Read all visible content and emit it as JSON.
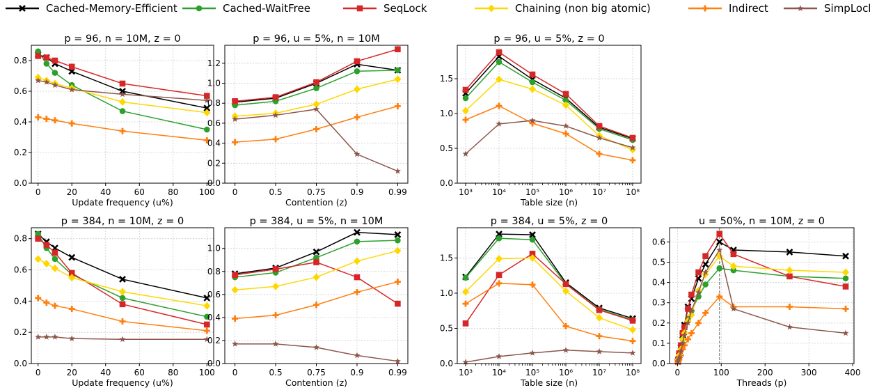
{
  "legend": {
    "items": [
      {
        "label": "Cached-Memory-Efficient",
        "color": "#000000",
        "marker": "x-marker"
      },
      {
        "label": "Cached-WaitFree",
        "color": "#2ca02c",
        "marker": "circle-marker"
      },
      {
        "label": "SeqLock",
        "color": "#d62728",
        "marker": "square-marker"
      },
      {
        "label": "Chaining (non big atomic)",
        "color": "#ffd700",
        "marker": "diamond-marker"
      },
      {
        "label": "Indirect",
        "color": "#ff7f0e",
        "marker": "plus-marker"
      },
      {
        "label": "SimpLock",
        "color": "#8c564b",
        "marker": "star-marker"
      }
    ]
  },
  "chart_data": [
    {
      "type": "line",
      "title": "p = 96, n = 10M, z = 0",
      "xlabel": "Update frequency (u%)",
      "ylabel": "",
      "x": [
        0,
        5,
        10,
        20,
        50,
        100
      ],
      "xlim": [
        -4,
        104
      ],
      "ylim": [
        0,
        0.9
      ],
      "xticks": [
        0,
        20,
        40,
        60,
        80,
        100
      ],
      "xtick_labels": [
        "0",
        "20",
        "40",
        "60",
        "80",
        "100"
      ],
      "yticks": [
        0,
        0.2,
        0.4,
        0.6,
        0.8
      ],
      "ytick_labels": [
        "0.0",
        "0.2",
        "0.4",
        "0.6",
        "0.8"
      ],
      "series": [
        {
          "name": "Cached-Memory-Efficient",
          "values": [
            0.84,
            0.82,
            0.78,
            0.73,
            0.6,
            0.49
          ]
        },
        {
          "name": "Cached-WaitFree",
          "values": [
            0.86,
            0.78,
            0.72,
            0.64,
            0.47,
            0.35
          ]
        },
        {
          "name": "SeqLock",
          "values": [
            0.83,
            0.82,
            0.8,
            0.76,
            0.65,
            0.57
          ]
        },
        {
          "name": "Chaining (non big atomic)",
          "values": [
            0.69,
            0.67,
            0.65,
            0.62,
            0.53,
            0.46
          ]
        },
        {
          "name": "Indirect",
          "values": [
            0.43,
            0.42,
            0.41,
            0.39,
            0.34,
            0.28
          ]
        },
        {
          "name": "SimpLock",
          "values": [
            0.67,
            0.66,
            0.64,
            0.61,
            0.58,
            0.54
          ]
        }
      ]
    },
    {
      "type": "line",
      "title": "p = 96, u = 5%, n = 10M",
      "xlabel": "Contention (z)",
      "ylabel": "",
      "x": [
        0,
        0.5,
        0.75,
        0.9,
        0.99
      ],
      "x_scale": "categorical",
      "xlim": [
        -0.25,
        4.25
      ],
      "ylim": [
        0,
        1.38
      ],
      "xticks": [
        0,
        1,
        2,
        3,
        4
      ],
      "xtick_labels": [
        "0",
        "0.5",
        "0.75",
        "0.9",
        "0.99"
      ],
      "yticks": [
        0,
        0.2,
        0.4,
        0.6,
        0.8,
        1.0,
        1.2
      ],
      "ytick_labels": [
        "0.0",
        "0.2",
        "0.4",
        "0.6",
        "0.8",
        "1.0",
        "1.2"
      ],
      "series": [
        {
          "name": "Cached-Memory-Efficient",
          "values": [
            0.81,
            0.85,
            1.0,
            1.19,
            1.13
          ]
        },
        {
          "name": "Cached-WaitFree",
          "values": [
            0.78,
            0.82,
            0.95,
            1.12,
            1.13
          ]
        },
        {
          "name": "SeqLock",
          "values": [
            0.82,
            0.86,
            1.01,
            1.22,
            1.34
          ]
        },
        {
          "name": "Chaining (non big atomic)",
          "values": [
            0.67,
            0.7,
            0.79,
            0.94,
            1.04
          ]
        },
        {
          "name": "Indirect",
          "values": [
            0.41,
            0.44,
            0.54,
            0.66,
            0.77
          ]
        },
        {
          "name": "SimpLock",
          "values": [
            0.64,
            0.68,
            0.74,
            0.29,
            0.12
          ]
        }
      ]
    },
    {
      "type": "line",
      "title": "p = 96, u = 5%, z = 0",
      "xlabel": "Table size (n)",
      "ylabel": "",
      "x": [
        3,
        4,
        5,
        6,
        7,
        8
      ],
      "x_scale": "log10",
      "xlim": [
        2.75,
        8.25
      ],
      "ylim": [
        0,
        1.98
      ],
      "xticks": [
        3,
        4,
        5,
        6,
        7,
        8
      ],
      "xtick_labels": [
        "10³",
        "10⁴",
        "10⁵",
        "10⁶",
        "10⁷",
        "10⁸"
      ],
      "yticks": [
        0,
        0.5,
        1.0,
        1.5
      ],
      "ytick_labels": [
        "0.0",
        "0.5",
        "1.0",
        "1.5"
      ],
      "series": [
        {
          "name": "Cached-Memory-Efficient",
          "values": [
            1.29,
            1.82,
            1.49,
            1.22,
            0.8,
            0.64
          ]
        },
        {
          "name": "Cached-WaitFree",
          "values": [
            1.22,
            1.74,
            1.45,
            1.19,
            0.78,
            0.62
          ]
        },
        {
          "name": "SeqLock",
          "values": [
            1.34,
            1.88,
            1.56,
            1.28,
            0.82,
            0.65
          ]
        },
        {
          "name": "Chaining (non big atomic)",
          "values": [
            1.04,
            1.49,
            1.35,
            1.12,
            0.68,
            0.48
          ]
        },
        {
          "name": "Indirect",
          "values": [
            0.91,
            1.11,
            0.86,
            0.71,
            0.42,
            0.33
          ]
        },
        {
          "name": "SimpLock",
          "values": [
            0.42,
            0.85,
            0.9,
            0.82,
            0.65,
            0.51
          ]
        }
      ]
    },
    {
      "type": "line",
      "title": "p = 384, n = 10M, z = 0",
      "xlabel": "Update frequency (u%)",
      "ylabel": "",
      "x": [
        0,
        5,
        10,
        20,
        50,
        100
      ],
      "xlim": [
        -4,
        104
      ],
      "ylim": [
        0,
        0.87
      ],
      "xticks": [
        0,
        20,
        40,
        60,
        80,
        100
      ],
      "xtick_labels": [
        "0",
        "20",
        "40",
        "60",
        "80",
        "100"
      ],
      "yticks": [
        0,
        0.2,
        0.4,
        0.6,
        0.8
      ],
      "ytick_labels": [
        "0.0",
        "0.2",
        "0.4",
        "0.6",
        "0.8"
      ],
      "series": [
        {
          "name": "Cached-Memory-Efficient",
          "values": [
            0.83,
            0.78,
            0.74,
            0.68,
            0.54,
            0.42
          ]
        },
        {
          "name": "Cached-WaitFree",
          "values": [
            0.83,
            0.74,
            0.67,
            0.57,
            0.42,
            0.3
          ]
        },
        {
          "name": "SeqLock",
          "values": [
            0.8,
            0.76,
            0.71,
            0.58,
            0.38,
            0.25
          ]
        },
        {
          "name": "Chaining (non big atomic)",
          "values": [
            0.67,
            0.64,
            0.61,
            0.55,
            0.46,
            0.37
          ]
        },
        {
          "name": "Indirect",
          "values": [
            0.42,
            0.39,
            0.37,
            0.35,
            0.27,
            0.21
          ]
        },
        {
          "name": "SimpLock",
          "values": [
            0.17,
            0.17,
            0.17,
            0.16,
            0.155,
            0.155
          ]
        }
      ]
    },
    {
      "type": "line",
      "title": "p = 384, u = 5%, n = 10M",
      "xlabel": "Contention (z)",
      "ylabel": "",
      "x": [
        0,
        0.5,
        0.75,
        0.9,
        0.99
      ],
      "x_scale": "categorical",
      "xlim": [
        -0.25,
        4.25
      ],
      "ylim": [
        0,
        1.18
      ],
      "xticks": [
        0,
        1,
        2,
        3,
        4
      ],
      "xtick_labels": [
        "0",
        "0.5",
        "0.75",
        "0.9",
        "0.99"
      ],
      "yticks": [
        0,
        0.2,
        0.4,
        0.6,
        0.8,
        1.0
      ],
      "ytick_labels": [
        "0.0",
        "0.2",
        "0.4",
        "0.6",
        "0.8",
        "1.0"
      ],
      "series": [
        {
          "name": "Cached-Memory-Efficient",
          "values": [
            0.78,
            0.83,
            0.97,
            1.14,
            1.12
          ]
        },
        {
          "name": "Cached-WaitFree",
          "values": [
            0.75,
            0.79,
            0.92,
            1.06,
            1.07
          ]
        },
        {
          "name": "SeqLock",
          "values": [
            0.77,
            0.82,
            0.88,
            0.75,
            0.52
          ]
        },
        {
          "name": "Chaining (non big atomic)",
          "values": [
            0.64,
            0.67,
            0.75,
            0.89,
            0.98
          ]
        },
        {
          "name": "Indirect",
          "values": [
            0.39,
            0.42,
            0.51,
            0.62,
            0.71
          ]
        },
        {
          "name": "SimpLock",
          "values": [
            0.17,
            0.17,
            0.14,
            0.07,
            0.02
          ]
        }
      ]
    },
    {
      "type": "line",
      "title": "p = 384, u = 5%, z = 0",
      "xlabel": "Table size (n)",
      "ylabel": "",
      "x": [
        3,
        4,
        5,
        6,
        7,
        8
      ],
      "x_scale": "log10",
      "xlim": [
        2.75,
        8.25
      ],
      "ylim": [
        0,
        1.93
      ],
      "xticks": [
        3,
        4,
        5,
        6,
        7,
        8
      ],
      "xtick_labels": [
        "10³",
        "10⁴",
        "10⁵",
        "10⁶",
        "10⁷",
        "10⁸"
      ],
      "yticks": [
        0,
        0.5,
        1.0,
        1.5
      ],
      "ytick_labels": [
        "0.0",
        "0.5",
        "1.0",
        "1.5"
      ],
      "series": [
        {
          "name": "Cached-Memory-Efficient",
          "values": [
            1.23,
            1.84,
            1.83,
            1.15,
            0.79,
            0.64
          ]
        },
        {
          "name": "Cached-WaitFree",
          "values": [
            1.22,
            1.78,
            1.76,
            1.13,
            0.77,
            0.62
          ]
        },
        {
          "name": "SeqLock",
          "values": [
            0.57,
            1.26,
            1.56,
            1.13,
            0.76,
            0.61
          ]
        },
        {
          "name": "Chaining (non big atomic)",
          "values": [
            1.02,
            1.49,
            1.5,
            1.03,
            0.65,
            0.48
          ]
        },
        {
          "name": "Indirect",
          "values": [
            0.85,
            1.14,
            1.12,
            0.53,
            0.39,
            0.32
          ]
        },
        {
          "name": "SimpLock",
          "values": [
            0.02,
            0.1,
            0.15,
            0.19,
            0.17,
            0.15
          ]
        }
      ]
    },
    {
      "type": "line",
      "title": "u = 50%, n = 10M, z = 0",
      "xlabel": "Threads (p)",
      "ylabel": "",
      "x": [
        1,
        2,
        4,
        8,
        12,
        16,
        24,
        32,
        48,
        64,
        96,
        128,
        256,
        384
      ],
      "xlim": [
        -18,
        403
      ],
      "ylim": [
        0,
        0.67
      ],
      "xticks": [
        0,
        100,
        200,
        300,
        400
      ],
      "xtick_labels": [
        "0",
        "100",
        "200",
        "300",
        "400"
      ],
      "yticks": [
        0,
        0.1,
        0.2,
        0.3,
        0.4,
        0.5,
        0.6
      ],
      "ytick_labels": [
        "0.0",
        "0.1",
        "0.2",
        "0.3",
        "0.4",
        "0.5",
        "0.6"
      ],
      "vline": 96,
      "series": [
        {
          "name": "Cached-Memory-Efficient",
          "values": [
            0.01,
            0.02,
            0.04,
            0.08,
            0.14,
            0.19,
            0.28,
            0.32,
            0.42,
            0.49,
            0.6,
            0.56,
            0.55,
            0.53
          ]
        },
        {
          "name": "Cached-WaitFree",
          "values": [
            0.01,
            0.02,
            0.04,
            0.07,
            0.12,
            0.15,
            0.22,
            0.26,
            0.33,
            0.39,
            0.47,
            0.46,
            0.43,
            0.42
          ]
        },
        {
          "name": "SeqLock",
          "values": [
            0.01,
            0.02,
            0.05,
            0.09,
            0.15,
            0.18,
            0.27,
            0.34,
            0.45,
            0.53,
            0.64,
            0.54,
            0.43,
            0.38
          ]
        },
        {
          "name": "Chaining (non big atomic)",
          "values": [
            0.01,
            0.02,
            0.04,
            0.07,
            0.12,
            0.15,
            0.21,
            0.24,
            0.36,
            0.44,
            0.53,
            0.48,
            0.46,
            0.45
          ]
        },
        {
          "name": "Indirect",
          "values": [
            0.01,
            0.01,
            0.02,
            0.04,
            0.07,
            0.09,
            0.12,
            0.15,
            0.2,
            0.25,
            0.33,
            0.28,
            0.28,
            0.27
          ]
        },
        {
          "name": "SimpLock",
          "values": [
            0.01,
            0.02,
            0.03,
            0.06,
            0.1,
            0.14,
            0.2,
            0.26,
            0.35,
            0.45,
            0.56,
            0.27,
            0.18,
            0.15
          ]
        }
      ]
    }
  ]
}
